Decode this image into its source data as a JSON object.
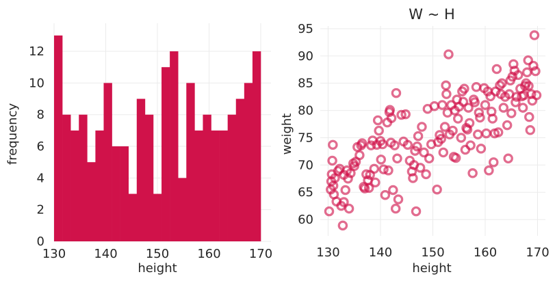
{
  "chart_data": [
    {
      "type": "bar",
      "subtype": "histogram",
      "title": "",
      "xlabel": "height",
      "ylabel": "frequency",
      "xlim": [
        130,
        170
      ],
      "ylim": [
        0,
        13.6
      ],
      "bin_edges": [
        130,
        131.6,
        133.2,
        134.8,
        136.4,
        138,
        139.6,
        141.2,
        142.8,
        144.4,
        146,
        147.6,
        149.2,
        150.8,
        152.4,
        154,
        155.6,
        157.2,
        158.8,
        160.4,
        162,
        163.6,
        165.2,
        166.8,
        168.4,
        170
      ],
      "values": [
        13,
        8,
        7,
        8,
        5,
        7,
        10,
        6,
        6,
        3,
        9,
        8,
        3,
        11,
        12,
        4,
        10,
        7,
        8,
        7,
        7,
        8,
        9,
        10,
        12
      ],
      "xticks": [
        130,
        140,
        150,
        160,
        170
      ],
      "yticks": [
        0,
        2,
        4,
        6,
        8,
        10,
        12
      ],
      "color": "#d0124a",
      "grid": true
    },
    {
      "type": "scatter",
      "title": "W ~ H",
      "xlabel": "height",
      "ylabel": "weight",
      "xlim": [
        128.5,
        171.5
      ],
      "ylim": [
        57,
        95.5
      ],
      "xticks": [
        130,
        140,
        150,
        160,
        170
      ],
      "yticks": [
        60,
        65,
        70,
        75,
        80,
        85,
        90,
        95
      ],
      "color": "#d0124a",
      "grid": true,
      "points": [
        [
          130.2,
          61.5
        ],
        [
          130.5,
          65.5
        ],
        [
          130.6,
          67
        ],
        [
          130.7,
          68.3
        ],
        [
          130.8,
          70.8
        ],
        [
          130.9,
          73.7
        ],
        [
          131,
          66.2
        ],
        [
          131.1,
          64.6
        ],
        [
          131.3,
          67.6
        ],
        [
          131.6,
          63.3
        ],
        [
          131.9,
          68.9
        ],
        [
          132.2,
          69.3
        ],
        [
          132.5,
          62.5
        ],
        [
          132.8,
          58.9
        ],
        [
          133,
          63.2
        ],
        [
          133,
          68.2
        ],
        [
          133.3,
          65.4
        ],
        [
          133.6,
          69
        ],
        [
          133.8,
          67.5
        ],
        [
          134,
          62
        ],
        [
          134.3,
          68.5
        ],
        [
          134.8,
          70.3
        ],
        [
          135,
          69.8
        ],
        [
          135.3,
          70.6
        ],
        [
          135.6,
          73.3
        ],
        [
          136,
          71.8
        ],
        [
          136.3,
          73.6
        ],
        [
          136.5,
          74
        ],
        [
          136.8,
          66
        ],
        [
          137,
          65.7
        ],
        [
          137.3,
          68.3
        ],
        [
          137.6,
          67.2
        ],
        [
          137.8,
          65.8
        ],
        [
          138,
          68.2
        ],
        [
          138.2,
          73.6
        ],
        [
          138.5,
          74.5
        ],
        [
          138.8,
          69.3
        ],
        [
          139,
          66.8
        ],
        [
          139.3,
          73.7
        ],
        [
          139.5,
          78.2
        ],
        [
          139.7,
          76.3
        ],
        [
          140,
          74.4
        ],
        [
          140.1,
          71
        ],
        [
          140.4,
          73.8
        ],
        [
          140.6,
          69.2
        ],
        [
          140.9,
          64.5
        ],
        [
          141.3,
          77.8
        ],
        [
          141.5,
          69
        ],
        [
          141.7,
          79.7
        ],
        [
          141.8,
          80.1
        ],
        [
          142,
          74.1
        ],
        [
          142.1,
          78.6
        ],
        [
          142.4,
          65.4
        ],
        [
          142.7,
          73.6
        ],
        [
          142.9,
          62
        ],
        [
          143,
          83.2
        ],
        [
          143.2,
          71.2
        ],
        [
          143.4,
          63.7
        ],
        [
          144,
          79.2
        ],
        [
          144.4,
          74.3
        ],
        [
          144.8,
          79.3
        ],
        [
          145.2,
          73.7
        ],
        [
          145.6,
          70.8
        ],
        [
          146,
          68.8
        ],
        [
          146.2,
          67.6
        ],
        [
          146.4,
          70
        ],
        [
          146.6,
          72.6
        ],
        [
          146.8,
          61.5
        ],
        [
          147,
          73.4
        ],
        [
          147.2,
          75.3
        ],
        [
          147.6,
          69.5
        ],
        [
          147.9,
          77
        ],
        [
          148.3,
          72.3
        ],
        [
          148.7,
          68.3
        ],
        [
          149,
          80.3
        ],
        [
          149.3,
          71.2
        ],
        [
          149.7,
          73.8
        ],
        [
          150.3,
          80.8
        ],
        [
          150.8,
          65.5
        ],
        [
          151,
          74.2
        ],
        [
          151.3,
          75.5
        ],
        [
          151.6,
          74.8
        ],
        [
          151.8,
          81
        ],
        [
          152,
          72.3
        ],
        [
          152.3,
          77
        ],
        [
          152.5,
          84.6
        ],
        [
          152.6,
          83
        ],
        [
          152.8,
          79.6
        ],
        [
          153,
          90.3
        ],
        [
          153.2,
          75.6
        ],
        [
          153.5,
          81
        ],
        [
          153.8,
          76.3
        ],
        [
          154,
          71.5
        ],
        [
          154.2,
          80
        ],
        [
          154.4,
          71.3
        ],
        [
          154.6,
          82
        ],
        [
          154.8,
          78.5
        ],
        [
          155,
          80.7
        ],
        [
          155.4,
          75
        ],
        [
          155.6,
          83.5
        ],
        [
          155.8,
          81.6
        ],
        [
          156,
          84
        ],
        [
          156.2,
          72.8
        ],
        [
          156.4,
          76.8
        ],
        [
          156.6,
          76.5
        ],
        [
          156.8,
          80.5
        ],
        [
          157,
          77.7
        ],
        [
          157.2,
          73.6
        ],
        [
          157.6,
          68.5
        ],
        [
          157.8,
          82
        ],
        [
          158,
          81.5
        ],
        [
          158.3,
          84.3
        ],
        [
          158.6,
          75.6
        ],
        [
          158.8,
          79.6
        ],
        [
          159,
          78.7
        ],
        [
          159.2,
          73
        ],
        [
          159.8,
          84.1
        ],
        [
          160,
          81
        ],
        [
          160.2,
          75.8
        ],
        [
          160.5,
          83.5
        ],
        [
          160.7,
          69
        ],
        [
          161,
          82.6
        ],
        [
          161.2,
          79.8
        ],
        [
          161.4,
          78.5
        ],
        [
          161.6,
          70.5
        ],
        [
          161.8,
          75.8
        ],
        [
          162,
          83.5
        ],
        [
          162.2,
          87.6
        ],
        [
          162.5,
          76
        ],
        [
          162.8,
          84.6
        ],
        [
          163,
          83
        ],
        [
          163.2,
          85
        ],
        [
          163.5,
          80.5
        ],
        [
          163.8,
          82.5
        ],
        [
          164.2,
          77.3
        ],
        [
          164.4,
          71.2
        ],
        [
          164.6,
          83
        ],
        [
          164.8,
          85.5
        ],
        [
          165,
          79.5
        ],
        [
          165.2,
          86.2
        ],
        [
          165.4,
          88.5
        ],
        [
          165.6,
          87.3
        ],
        [
          165.8,
          81.5
        ],
        [
          166,
          82.5
        ],
        [
          166.3,
          86.5
        ],
        [
          166.7,
          84
        ],
        [
          167,
          82.6
        ],
        [
          167.2,
          80.5
        ],
        [
          167.4,
          82.8
        ],
        [
          167.6,
          84.5
        ],
        [
          167.8,
          85
        ],
        [
          168,
          87
        ],
        [
          168.2,
          89.2
        ],
        [
          168.3,
          84.5
        ],
        [
          168.4,
          78.8
        ],
        [
          168.6,
          76.4
        ],
        [
          168.8,
          83
        ],
        [
          169,
          81.8
        ],
        [
          169.2,
          88.2
        ],
        [
          169.4,
          93.8
        ],
        [
          169.6,
          87.2
        ],
        [
          169.8,
          82.8
        ]
      ]
    }
  ]
}
